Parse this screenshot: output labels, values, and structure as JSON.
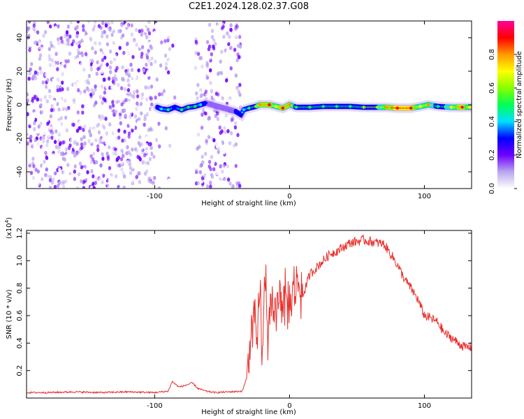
{
  "title": "C2E1.2024.128.02.37.G08",
  "chart_data": [
    {
      "type": "heatmap",
      "xlabel": "Height of straight line (km)",
      "ylabel": "Frequency (Hz)",
      "xlim": [
        -195,
        135
      ],
      "ylim": [
        -50,
        50
      ],
      "xticks": [
        -100,
        0,
        100
      ],
      "yticks": [
        -40,
        -20,
        0,
        20,
        40
      ],
      "colorbar": {
        "label": "Normalized spectral amplitude",
        "range": [
          0,
          1
        ],
        "ticks": [
          0.0,
          0.2,
          0.4,
          0.6,
          0.8
        ],
        "colors": [
          "#ffffff",
          "#b9a6ee",
          "#6f00ff",
          "#0000ff",
          "#00e0ff",
          "#00ff55",
          "#88ff00",
          "#ffff00",
          "#ff9900",
          "#ff0000",
          "#ff0099"
        ]
      },
      "noise_regions": [
        {
          "x": [
            -195,
            -100
          ],
          "density": 0.9
        },
        {
          "x": [
            -100,
            -90
          ],
          "density": 0.25
        },
        {
          "x": [
            -90,
            -85
          ],
          "density": 0.3
        },
        {
          "x": [
            -70,
            -36
          ],
          "density": 0.75
        }
      ],
      "signal_track": [
        {
          "x": -98,
          "freq": -1.5,
          "amp": 0.3
        },
        {
          "x": -95,
          "freq": -2.5,
          "amp": 0.45
        },
        {
          "x": -90,
          "freq": -3,
          "amp": 0.5
        },
        {
          "x": -85,
          "freq": -1.5,
          "amp": 0.35
        },
        {
          "x": -80,
          "freq": -3,
          "amp": 0.55
        },
        {
          "x": -75,
          "freq": -1.5,
          "amp": 0.5
        },
        {
          "x": -70,
          "freq": -1,
          "amp": 0.55
        },
        {
          "x": -66,
          "freq": 0,
          "amp": 0.45
        },
        {
          "x": -62,
          "freq": 1,
          "amp": 0.3
        },
        {
          "x": -40,
          "freq": -4,
          "amp": 0.35
        },
        {
          "x": -36,
          "freq": -6,
          "amp": 0.35
        },
        {
          "x": -34,
          "freq": -3,
          "amp": 0.45
        },
        {
          "x": -30,
          "freq": -2,
          "amp": 0.5
        },
        {
          "x": -25,
          "freq": -1,
          "amp": 0.6
        },
        {
          "x": -22,
          "freq": 0,
          "amp": 0.85
        },
        {
          "x": -15,
          "freq": 0,
          "amp": 0.9
        },
        {
          "x": -10,
          "freq": -1,
          "amp": 0.7
        },
        {
          "x": -5,
          "freq": -2,
          "amp": 0.9
        },
        {
          "x": 0,
          "freq": 0,
          "amp": 0.88
        },
        {
          "x": 5,
          "freq": -1.5,
          "amp": 0.55
        },
        {
          "x": 15,
          "freq": -1.5,
          "amp": 0.5
        },
        {
          "x": 25,
          "freq": -1,
          "amp": 0.5
        },
        {
          "x": 35,
          "freq": -1,
          "amp": 0.55
        },
        {
          "x": 45,
          "freq": -1,
          "amp": 0.55
        },
        {
          "x": 55,
          "freq": -1.5,
          "amp": 0.6
        },
        {
          "x": 65,
          "freq": -1.5,
          "amp": 0.6
        },
        {
          "x": 72,
          "freq": -1.5,
          "amp": 0.85
        },
        {
          "x": 80,
          "freq": -2,
          "amp": 0.95
        },
        {
          "x": 90,
          "freq": -2,
          "amp": 0.92
        },
        {
          "x": 97,
          "freq": -1,
          "amp": 0.7
        },
        {
          "x": 103,
          "freq": 0,
          "amp": 0.8
        },
        {
          "x": 110,
          "freq": -1,
          "amp": 0.5
        },
        {
          "x": 120,
          "freq": -1.5,
          "amp": 0.7
        },
        {
          "x": 128,
          "freq": -1.5,
          "amp": 0.92
        },
        {
          "x": 134,
          "freq": -1.5,
          "amp": 0.7
        }
      ]
    },
    {
      "type": "line",
      "xlabel": "Height of straight line (km)",
      "ylabel": "SNR (10 * v/v)",
      "y_multiplier_label": "(x10",
      "y_multiplier_exp": "4",
      "xlim": [
        -195,
        135
      ],
      "ylim": [
        0,
        1.22
      ],
      "xticks": [
        -100,
        0,
        100
      ],
      "yticks": [
        0.2,
        0.4,
        0.6,
        0.8,
        1.0,
        1.2
      ],
      "color": "#e8302c",
      "series": [
        {
          "x": [
            -195,
            -180,
            -160,
            -140,
            -120,
            -100,
            -90,
            -87,
            -82,
            -78,
            -72,
            -68,
            -62,
            -55,
            -45,
            -35,
            -30,
            -27,
            -24,
            -22,
            -20,
            -18,
            -16,
            -14,
            -12,
            -10,
            -5,
            0,
            5,
            10,
            15,
            20,
            25,
            30,
            35,
            40,
            45,
            50,
            55,
            60,
            65,
            70,
            75,
            80,
            85,
            90,
            95,
            100,
            105,
            110,
            115,
            120,
            125,
            130,
            135
          ],
          "y": [
            0.04,
            0.04,
            0.045,
            0.04,
            0.045,
            0.04,
            0.05,
            0.12,
            0.08,
            0.09,
            0.11,
            0.07,
            0.05,
            0.04,
            0.045,
            0.05,
            0.2,
            0.65,
            0.35,
            0.8,
            0.3,
            0.95,
            0.45,
            0.7,
            0.55,
            0.7,
            0.75,
            0.68,
            0.85,
            0.75,
            0.9,
            0.95,
            1.0,
            1.05,
            1.07,
            1.1,
            1.13,
            1.14,
            1.15,
            1.14,
            1.13,
            1.12,
            1.05,
            0.97,
            0.87,
            0.8,
            0.72,
            0.6,
            0.58,
            0.55,
            0.47,
            0.44,
            0.4,
            0.37,
            0.37
          ]
        }
      ]
    }
  ]
}
